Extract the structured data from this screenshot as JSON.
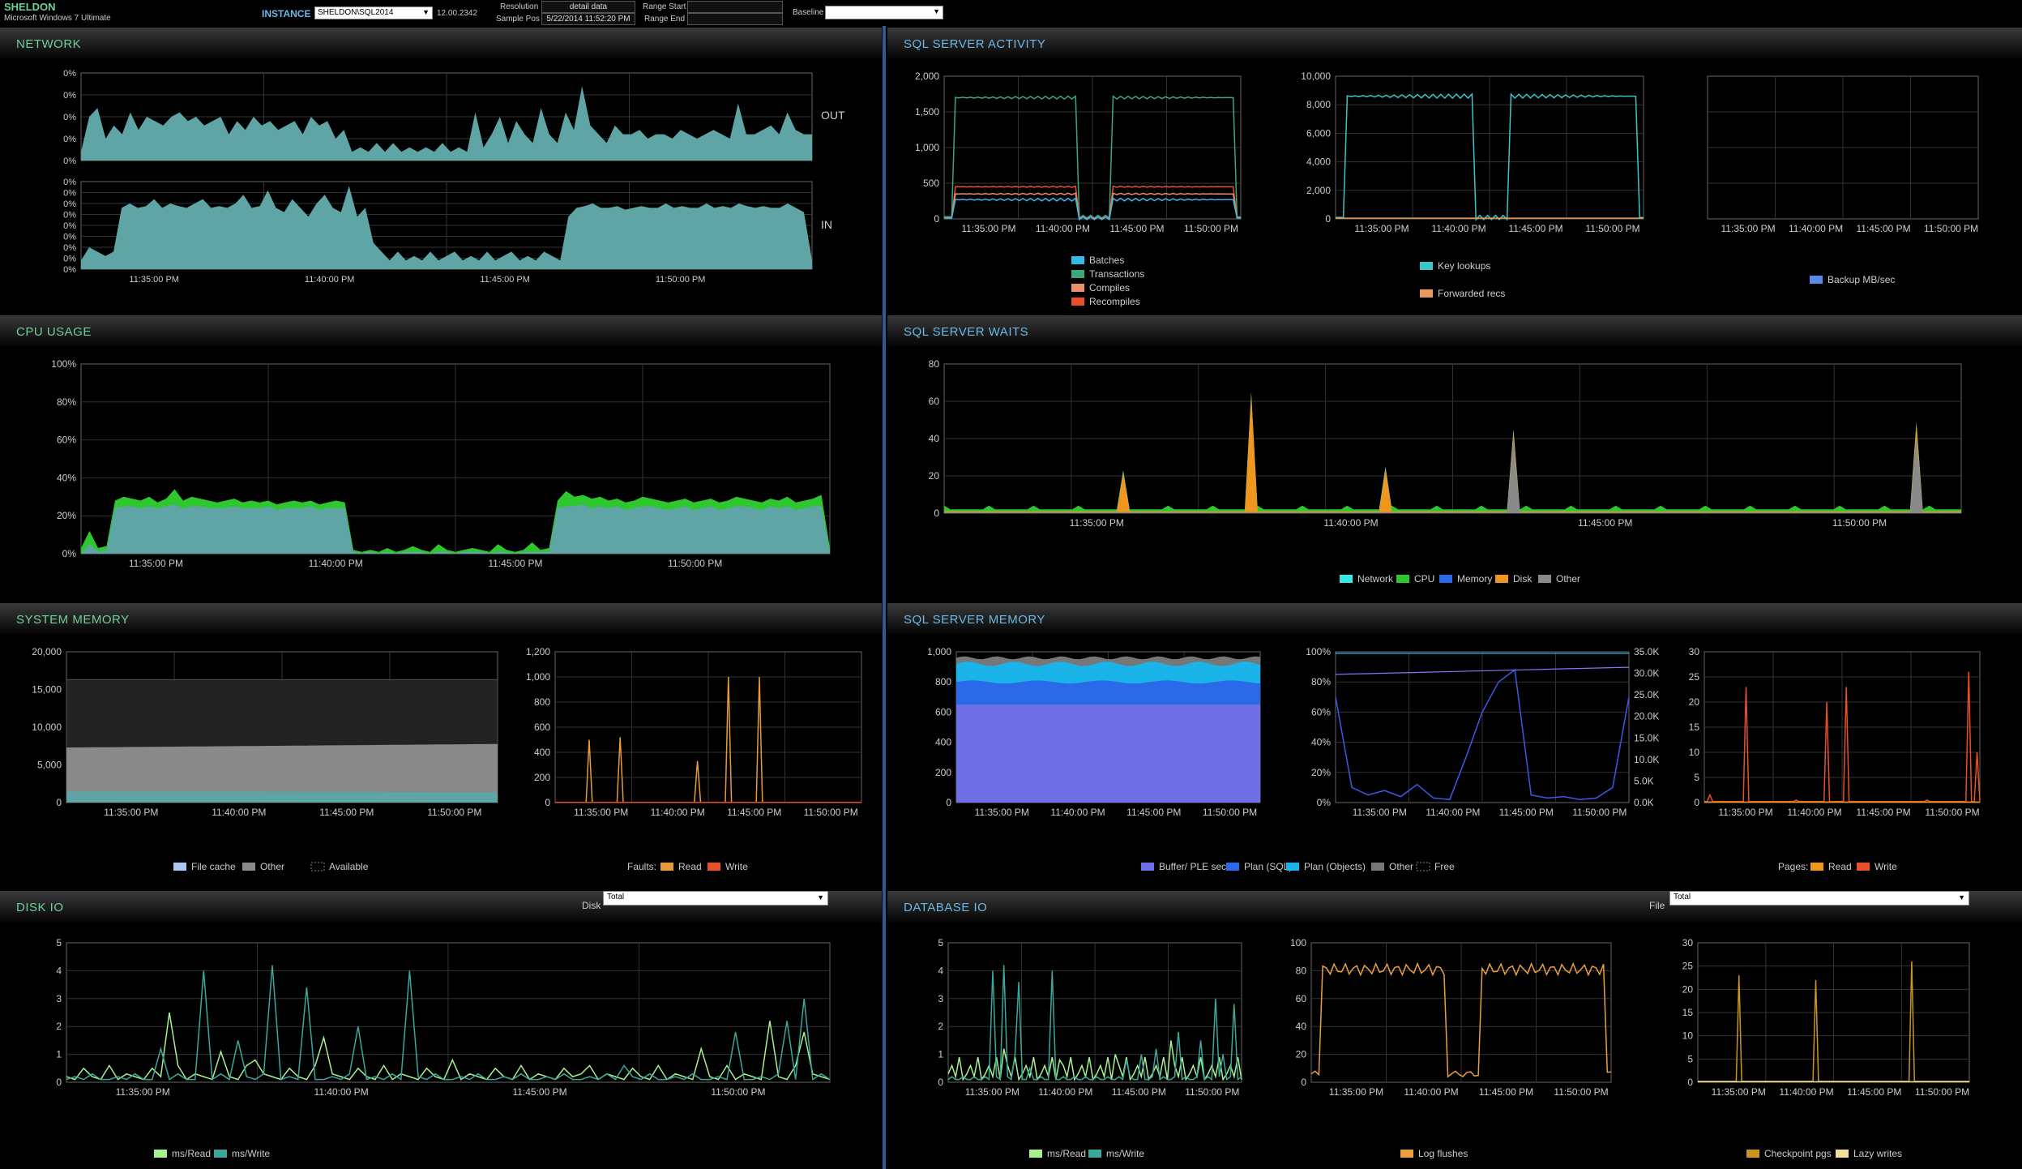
{
  "header": {
    "server": "SHELDON",
    "os": "Microsoft Windows 7 Ultimate",
    "instance_label": "INSTANCE",
    "instance_value": "SHELDON\\SQL2014",
    "version": "12.00.2342",
    "resolution_label": "Resolution",
    "resolution_value": "detail data",
    "sample_pos_label": "Sample Pos",
    "sample_pos_value": "5/22/2014 11:52:20 PM",
    "range_start_label": "Range Start",
    "range_end_label": "Range End",
    "baseline_label": "Baseline"
  },
  "panels": {
    "network": "NETWORK",
    "cpu": "CPU USAGE",
    "sysmem": "SYSTEM MEMORY",
    "diskio": "DISK IO",
    "activity": "SQL SERVER ACTIVITY",
    "waits": "SQL SERVER WAITS",
    "sqlmem": "SQL SERVER MEMORY",
    "dbio": "DATABASE IO"
  },
  "selectors": {
    "disk_label": "Disk",
    "disk_value": "Total",
    "file_label": "File",
    "file_value": "Total"
  },
  "colors": {
    "teal": "#5fa5a5",
    "green": "#2ec82e",
    "accent_blue": "#6cb8e8",
    "accent_green": "#6fd09a"
  },
  "x_ticks": [
    "11:35:00 PM",
    "11:40:00 PM",
    "11:45:00 PM",
    "11:50:00 PM"
  ],
  "chart_data": [
    {
      "id": "net_out",
      "type": "area",
      "y_ticks": [
        "0%",
        "0%",
        "0%",
        "0%",
        "0%"
      ],
      "label": "OUT",
      "series": [
        {
          "color": "#5fa5a5",
          "values": [
            0.1,
            0.5,
            0.6,
            0.25,
            0.4,
            0.3,
            0.55,
            0.35,
            0.5,
            0.45,
            0.4,
            0.5,
            0.55,
            0.45,
            0.5,
            0.4,
            0.45,
            0.5,
            0.3,
            0.45,
            0.35,
            0.5,
            0.4,
            0.45,
            0.35,
            0.4,
            0.45,
            0.3,
            0.5,
            0.4,
            0.45,
            0.25,
            0.35,
            0.1,
            0.15,
            0.1,
            0.2,
            0.1,
            0.2,
            0.1,
            0.15,
            0.1,
            0.15,
            0.1,
            0.2,
            0.1,
            0.15,
            0.1,
            0.55,
            0.15,
            0.3,
            0.5,
            0.2,
            0.45,
            0.3,
            0.2,
            0.6,
            0.3,
            0.2,
            0.55,
            0.35,
            0.85,
            0.4,
            0.3,
            0.2,
            0.4,
            0.3,
            0.3,
            0.35,
            0.25,
            0.3,
            0.3,
            0.25,
            0.35,
            0.3,
            0.25,
            0.3,
            0.35,
            0.3,
            0.25,
            0.65,
            0.3,
            0.3,
            0.35,
            0.4,
            0.3,
            0.55,
            0.35,
            0.3,
            0.3
          ]
        }
      ]
    },
    {
      "id": "net_in",
      "type": "area",
      "y_ticks": [
        "0%",
        "0%",
        "0%",
        "0%",
        "0%",
        "0%",
        "0%",
        "0%",
        "0%"
      ],
      "label": "IN",
      "series": [
        {
          "color": "#5fa5a5",
          "values": [
            0.1,
            0.25,
            0.2,
            0.15,
            0.2,
            0.7,
            0.75,
            0.7,
            0.72,
            0.8,
            0.7,
            0.75,
            0.72,
            0.7,
            0.75,
            0.8,
            0.7,
            0.72,
            0.7,
            0.75,
            0.85,
            0.7,
            0.72,
            0.9,
            0.7,
            0.65,
            0.8,
            0.7,
            0.6,
            0.75,
            0.85,
            0.7,
            0.65,
            0.95,
            0.6,
            0.7,
            0.3,
            0.2,
            0.1,
            0.2,
            0.1,
            0.15,
            0.1,
            0.2,
            0.1,
            0.15,
            0.2,
            0.1,
            0.15,
            0.1,
            0.2,
            0.1,
            0.15,
            0.2,
            0.1,
            0.15,
            0.1,
            0.2,
            0.15,
            0.1,
            0.6,
            0.7,
            0.72,
            0.75,
            0.7,
            0.7,
            0.72,
            0.68,
            0.7,
            0.72,
            0.7,
            0.7,
            0.75,
            0.7,
            0.72,
            0.7,
            0.7,
            0.75,
            0.7,
            0.72,
            0.7,
            0.75,
            0.72,
            0.7,
            0.72,
            0.7,
            0.7,
            0.75,
            0.7,
            0.65,
            0.1
          ]
        }
      ]
    },
    {
      "id": "cpu",
      "type": "area",
      "y_ticks": [
        "0%",
        "20%",
        "40%",
        "60%",
        "80%",
        "100%"
      ],
      "series": [
        {
          "color": "#2ec82e",
          "values": [
            3,
            12,
            3,
            4,
            28,
            30,
            29,
            28,
            30,
            27,
            29,
            34,
            28,
            30,
            29,
            28,
            27,
            28,
            29,
            27,
            28,
            27,
            28,
            26,
            27,
            28,
            27,
            28,
            26,
            27,
            28,
            27,
            2,
            1,
            2,
            1,
            3,
            1,
            2,
            4,
            2,
            1,
            5,
            2,
            1,
            2,
            3,
            2,
            1,
            5,
            2,
            1,
            2,
            6,
            2,
            3,
            28,
            33,
            30,
            31,
            29,
            30,
            28,
            29,
            27,
            28,
            30,
            29,
            28,
            27,
            28,
            29,
            27,
            28,
            29,
            27,
            28,
            30,
            29,
            28,
            27,
            29,
            28,
            30,
            27,
            28,
            29,
            31,
            3
          ]
        },
        {
          "color": "#5fa5a5",
          "values": [
            0,
            5,
            1,
            2,
            24,
            25,
            25,
            24,
            25,
            24,
            25,
            26,
            24,
            25,
            25,
            24,
            24,
            24,
            25,
            24,
            24,
            24,
            25,
            23,
            24,
            24,
            24,
            25,
            23,
            24,
            24,
            24,
            1,
            0,
            1,
            0,
            1,
            0,
            1,
            1,
            1,
            0,
            1,
            1,
            0,
            1,
            1,
            1,
            0,
            1,
            1,
            0,
            1,
            1,
            1,
            1,
            24,
            25,
            25,
            26,
            24,
            25,
            24,
            25,
            23,
            24,
            25,
            25,
            24,
            23,
            24,
            25,
            23,
            24,
            25,
            23,
            24,
            25,
            25,
            24,
            23,
            25,
            24,
            25,
            23,
            24,
            25,
            25,
            1
          ]
        }
      ]
    },
    {
      "id": "sysmem",
      "type": "area",
      "y_ticks": [
        "0",
        "5,000",
        "10,000",
        "15,000",
        "20,000"
      ],
      "legend": [
        "File cache",
        "Other",
        "Available"
      ]
    },
    {
      "id": "faults",
      "type": "line",
      "y_ticks": [
        "0",
        "200",
        "400",
        "600",
        "800",
        "1,000",
        "1,200"
      ],
      "legend_prefix": "Faults:",
      "legend": [
        "Read",
        "Write"
      ]
    },
    {
      "id": "diskio",
      "type": "line",
      "y_ticks": [
        "0",
        "1",
        "2",
        "3",
        "4",
        "5"
      ],
      "legend": [
        "ms/Read",
        "ms/Write"
      ]
    },
    {
      "id": "activity1",
      "type": "line",
      "y_ticks": [
        "0",
        "500",
        "1,000",
        "1,500",
        "2,000"
      ],
      "legend": [
        "Batches",
        "Transactions",
        "Compiles",
        "Recompiles"
      ]
    },
    {
      "id": "activity2",
      "type": "line",
      "y_ticks": [
        "0",
        "2,000",
        "4,000",
        "6,000",
        "8,000",
        "10,000"
      ],
      "legend": [
        "Key lookups",
        "Forwarded recs"
      ]
    },
    {
      "id": "activity3",
      "type": "line",
      "legend": [
        "Backup MB/sec"
      ]
    },
    {
      "id": "waits",
      "type": "area",
      "y_ticks": [
        "0",
        "20",
        "40",
        "60",
        "80"
      ],
      "legend": [
        "Network",
        "CPU",
        "Memory",
        "Disk",
        "Other"
      ]
    },
    {
      "id": "sqlmem1",
      "type": "area",
      "y_ticks": [
        "0",
        "200",
        "400",
        "600",
        "800",
        "1,000"
      ],
      "legend": [
        "Buffer/ PLE sec",
        "Plan (SQL)",
        "Plan (Objects)",
        "Other",
        "Free"
      ]
    },
    {
      "id": "sqlmem2",
      "type": "line",
      "y_ticks": [
        "0%",
        "20%",
        "40%",
        "60%",
        "80%",
        "100%"
      ],
      "y2_ticks": [
        "0.0K",
        "5.0K",
        "10.0K",
        "15.0K",
        "20.0K",
        "25.0K",
        "30.0K",
        "35.0K"
      ]
    },
    {
      "id": "pages",
      "type": "line",
      "y_ticks": [
        "0",
        "5",
        "10",
        "15",
        "20",
        "25",
        "30"
      ],
      "legend_prefix": "Pages:",
      "legend": [
        "Read",
        "Write"
      ]
    },
    {
      "id": "dbio1",
      "type": "line",
      "y_ticks": [
        "0",
        "1",
        "2",
        "3",
        "4",
        "5"
      ],
      "legend": [
        "ms/Read",
        "ms/Write"
      ]
    },
    {
      "id": "dbio2",
      "type": "line",
      "y_ticks": [
        "0",
        "20",
        "40",
        "60",
        "80",
        "100"
      ],
      "legend": [
        "Log flushes"
      ]
    },
    {
      "id": "dbio3",
      "type": "line",
      "y_ticks": [
        "0",
        "5",
        "10",
        "15",
        "20",
        "25",
        "30"
      ],
      "legend": [
        "Checkpoint pgs",
        "Lazy writes"
      ]
    }
  ]
}
